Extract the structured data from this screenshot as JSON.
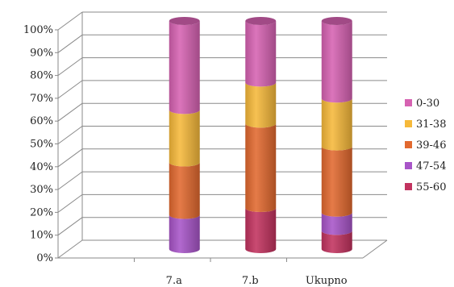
{
  "chart_data": {
    "type": "bar",
    "stacked": true,
    "percent": true,
    "bar_shape": "cylinder-3d",
    "categories": [
      "7.a",
      "7.b",
      "Ukupno"
    ],
    "y_ticks": [
      "0%",
      "10%",
      "20%",
      "30%",
      "40%",
      "50%",
      "60%",
      "70%",
      "80%",
      "90%",
      "100%"
    ],
    "ylim": [
      0,
      100
    ],
    "grid": true,
    "legend_position": "right",
    "series": [
      {
        "name": "55-60",
        "color": "#c2335f",
        "values": [
          0,
          18,
          8
        ]
      },
      {
        "name": "47-54",
        "color": "#a855c8",
        "values": [
          15,
          0,
          8
        ]
      },
      {
        "name": "39-46",
        "color": "#e2692f",
        "values": [
          23,
          37,
          29
        ]
      },
      {
        "name": "31-38",
        "color": "#f6b93a",
        "values": [
          23,
          18,
          21
        ]
      },
      {
        "name": "0-30",
        "color": "#d662b2",
        "values": [
          39,
          27,
          34
        ]
      }
    ],
    "legend_order": [
      "0-30",
      "31-38",
      "39-46",
      "47-54",
      "55-60"
    ]
  }
}
